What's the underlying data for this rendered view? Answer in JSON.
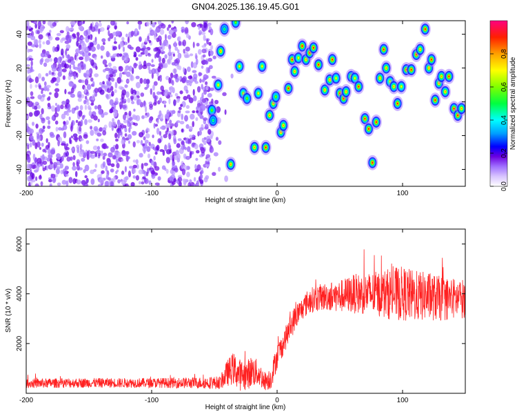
{
  "figure": {
    "title": "GN04.2025.136.19.45.G01"
  },
  "chart_data": [
    {
      "type": "heatmap",
      "title": "GN04.2025.136.19.45.G01",
      "xlabel": "Height of straight line (km)",
      "ylabel": "Frequency (Hz)",
      "xlim": [
        -200,
        150
      ],
      "ylim": [
        -50,
        48
      ],
      "xticks": [
        -200,
        -100,
        0,
        100
      ],
      "yticks": [
        -40,
        -20,
        0,
        20,
        40
      ],
      "colorbar": {
        "label": "Normalized spectral amplitude",
        "range": [
          0,
          1
        ],
        "ticks": [
          0.0,
          0.2,
          0.4,
          0.6,
          0.8
        ],
        "colormap": [
          "#ffffff",
          "#dcc8ff",
          "#b48cff",
          "#8c3cff",
          "#6400dc",
          "#0000ff",
          "#00aaff",
          "#00ffff",
          "#00ff00",
          "#aaff00",
          "#ffff00",
          "#ffaa00",
          "#ff0000",
          "#ff0080"
        ]
      },
      "noise_region": {
        "x_range": [
          -200,
          -52
        ],
        "note_level": "0.1-0.3"
      },
      "blobs": [
        {
          "x": -52,
          "y": -5,
          "a": 0.6
        },
        {
          "x": -51,
          "y": -11,
          "a": 0.5
        },
        {
          "x": -47,
          "y": 10,
          "a": 0.7
        },
        {
          "x": -45,
          "y": 30,
          "a": 0.8
        },
        {
          "x": -42,
          "y": 43,
          "a": 0.5
        },
        {
          "x": -37,
          "y": -37,
          "a": 0.8
        },
        {
          "x": -33,
          "y": 47,
          "a": 0.6
        },
        {
          "x": -30,
          "y": 21,
          "a": 0.7
        },
        {
          "x": -27,
          "y": 5,
          "a": 0.7
        },
        {
          "x": -24,
          "y": 2,
          "a": 0.6
        },
        {
          "x": -18,
          "y": -27,
          "a": 0.8
        },
        {
          "x": -15,
          "y": 5,
          "a": 0.7
        },
        {
          "x": -12,
          "y": 21,
          "a": 0.7
        },
        {
          "x": -9,
          "y": -27,
          "a": 0.9
        },
        {
          "x": -6,
          "y": -8,
          "a": 0.8
        },
        {
          "x": -3,
          "y": -1,
          "a": 0.8
        },
        {
          "x": -1,
          "y": 3,
          "a": 0.6
        },
        {
          "x": 3,
          "y": -18,
          "a": 0.8
        },
        {
          "x": 5,
          "y": -14,
          "a": 0.8
        },
        {
          "x": 9,
          "y": 8,
          "a": 0.9
        },
        {
          "x": 12,
          "y": 25,
          "a": 0.9
        },
        {
          "x": 14,
          "y": 18,
          "a": 0.8
        },
        {
          "x": 17,
          "y": 26,
          "a": 0.7
        },
        {
          "x": 20,
          "y": 33,
          "a": 0.9
        },
        {
          "x": 23,
          "y": 25,
          "a": 0.8
        },
        {
          "x": 26,
          "y": 29,
          "a": 0.9
        },
        {
          "x": 29,
          "y": 32,
          "a": 0.9
        },
        {
          "x": 33,
          "y": 22,
          "a": 0.9
        },
        {
          "x": 38,
          "y": 7,
          "a": 0.8
        },
        {
          "x": 42,
          "y": 13,
          "a": 0.8
        },
        {
          "x": 44,
          "y": 25,
          "a": 0.9
        },
        {
          "x": 47,
          "y": 14,
          "a": 0.7
        },
        {
          "x": 50,
          "y": 5,
          "a": 0.9
        },
        {
          "x": 53,
          "y": 2,
          "a": 0.9
        },
        {
          "x": 55,
          "y": 6,
          "a": 0.8
        },
        {
          "x": 59,
          "y": 15,
          "a": 0.8
        },
        {
          "x": 62,
          "y": 14,
          "a": 0.7
        },
        {
          "x": 65,
          "y": 9,
          "a": 0.9
        },
        {
          "x": 70,
          "y": -10,
          "a": 0.9
        },
        {
          "x": 73,
          "y": -16,
          "a": 0.9
        },
        {
          "x": 76,
          "y": -36,
          "a": 0.9
        },
        {
          "x": 79,
          "y": -12,
          "a": 0.9
        },
        {
          "x": 82,
          "y": 14,
          "a": 0.8
        },
        {
          "x": 85,
          "y": 31,
          "a": 0.9
        },
        {
          "x": 87,
          "y": 20,
          "a": 0.8
        },
        {
          "x": 90,
          "y": 12,
          "a": 0.7
        },
        {
          "x": 93,
          "y": 9,
          "a": 0.8
        },
        {
          "x": 96,
          "y": -1,
          "a": 0.9
        },
        {
          "x": 99,
          "y": 9,
          "a": 0.7
        },
        {
          "x": 103,
          "y": 19,
          "a": 0.9
        },
        {
          "x": 107,
          "y": 19,
          "a": 0.9
        },
        {
          "x": 111,
          "y": 28,
          "a": 0.9
        },
        {
          "x": 114,
          "y": 31,
          "a": 0.8
        },
        {
          "x": 118,
          "y": 43,
          "a": 0.9
        },
        {
          "x": 121,
          "y": 20,
          "a": 0.8
        },
        {
          "x": 123,
          "y": 25,
          "a": 0.9
        },
        {
          "x": 126,
          "y": 1,
          "a": 0.9
        },
        {
          "x": 129,
          "y": 11,
          "a": 0.8
        },
        {
          "x": 131,
          "y": 15,
          "a": 0.8
        },
        {
          "x": 134,
          "y": 6,
          "a": 0.8
        },
        {
          "x": 137,
          "y": 15,
          "a": 0.9
        },
        {
          "x": 141,
          "y": -4,
          "a": 0.9
        },
        {
          "x": 144,
          "y": -8,
          "a": 0.9
        },
        {
          "x": 147,
          "y": -4,
          "a": 0.8
        }
      ]
    },
    {
      "type": "line",
      "xlabel": "Height of straight line (km)",
      "ylabel": "SNR (10 * v/v)",
      "xlim": [
        -200,
        150
      ],
      "ylim": [
        0,
        6600
      ],
      "xticks": [
        -200,
        -100,
        0,
        100
      ],
      "yticks": [
        2000,
        4000,
        6000
      ],
      "line_color": "#ff2020",
      "envelope_x": [
        -200,
        -150,
        -100,
        -60,
        -45,
        -40,
        -35,
        -30,
        -25,
        -20,
        -15,
        -10,
        -5,
        0,
        5,
        10,
        15,
        20,
        25,
        30,
        40,
        50,
        60,
        70,
        80,
        90,
        100,
        110,
        120,
        130,
        140,
        150
      ],
      "envelope_mean": [
        400,
        420,
        420,
        420,
        430,
        800,
        1000,
        750,
        700,
        900,
        800,
        500,
        600,
        1500,
        2000,
        2600,
        3100,
        3400,
        3700,
        3800,
        3900,
        3900,
        4000,
        4000,
        4000,
        4000,
        4000,
        3900,
        3900,
        3800,
        3800,
        3800
      ],
      "envelope_spread": [
        150,
        150,
        150,
        180,
        200,
        400,
        500,
        500,
        450,
        500,
        400,
        300,
        350,
        400,
        350,
        400,
        400,
        350,
        400,
        400,
        450,
        500,
        600,
        650,
        700,
        800,
        850,
        800,
        750,
        700,
        650,
        600
      ],
      "max_value": 6600
    }
  ]
}
